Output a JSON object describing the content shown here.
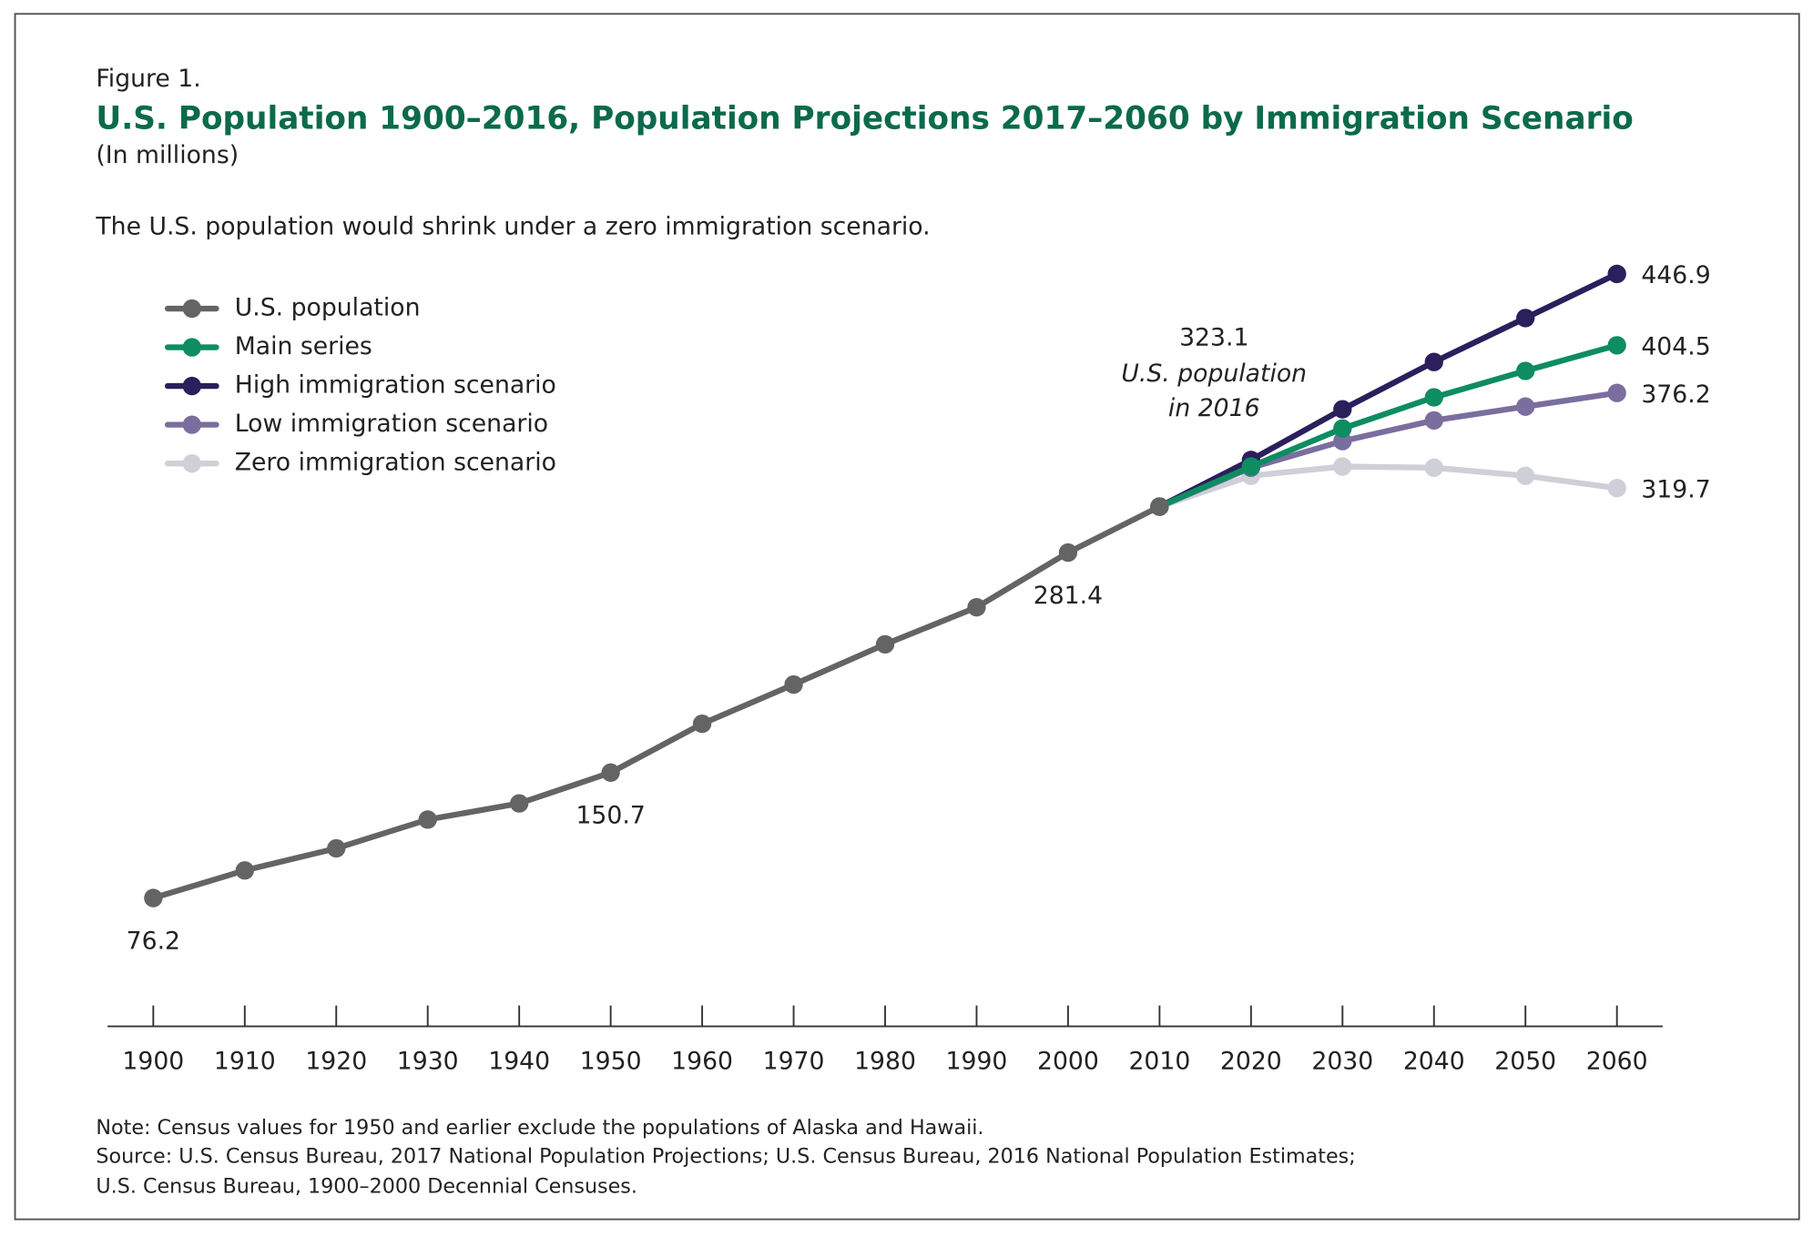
{
  "chart_data": {
    "type": "line",
    "label": "Figure 1.",
    "title": "U.S. Population 1900–2016, Population Projections 2017–2060 by Immigration Scenario",
    "subtitle": "(In millions)",
    "caption": "The U.S. population would shrink under a zero immigration scenario.",
    "annotations": [
      "323.1",
      "U.S. population",
      "in 2016"
    ],
    "series": [
      {
        "name": "U.S. population",
        "color": "#646464",
        "x": [
          1900,
          1910,
          1920,
          1930,
          1940,
          1950,
          1960,
          1970,
          1980,
          1990,
          2000,
          2010
        ],
        "values": [
          76.2,
          92.6,
          105.7,
          122.8,
          132.4,
          150.7,
          179.7,
          203.0,
          226.9,
          248.9,
          281.4,
          308.7
        ],
        "value_labels": [
          "76.2",
          null,
          null,
          null,
          null,
          "150.7",
          null,
          null,
          null,
          null,
          "281.4",
          null
        ]
      },
      {
        "name": "Main series",
        "color": "#0e8c62",
        "x": [
          2010,
          2020,
          2030,
          2040,
          2050,
          2060
        ],
        "values": [
          308.7,
          332.5,
          355.1,
          373.6,
          389.3,
          404.5
        ],
        "value_labels": [
          null,
          null,
          null,
          null,
          null,
          "404.5"
        ]
      },
      {
        "name": "High immigration scenario",
        "color": "#2b1f5c",
        "x": [
          2010,
          2020,
          2030,
          2040,
          2050,
          2060
        ],
        "values": [
          308.7,
          336.4,
          366.5,
          394.6,
          420.7,
          446.9
        ],
        "value_labels": [
          null,
          null,
          null,
          null,
          null,
          "446.9"
        ]
      },
      {
        "name": "Low immigration scenario",
        "color": "#7a6e9e",
        "x": [
          2010,
          2020,
          2030,
          2040,
          2050,
          2060
        ],
        "values": [
          308.7,
          331.8,
          347.6,
          359.9,
          368.1,
          376.2
        ],
        "value_labels": [
          null,
          null,
          null,
          null,
          null,
          "376.2"
        ]
      },
      {
        "name": "Zero immigration scenario",
        "color": "#cfcfd8",
        "x": [
          2010,
          2020,
          2030,
          2040,
          2050,
          2060
        ],
        "values": [
          308.7,
          327.0,
          332.5,
          331.8,
          327.0,
          319.7
        ],
        "value_labels": [
          null,
          null,
          null,
          null,
          null,
          "319.7"
        ]
      }
    ],
    "xlim": [
      1895,
      2065
    ],
    "xticks": [
      1900,
      1910,
      1920,
      1930,
      1940,
      1950,
      1960,
      1970,
      1980,
      1990,
      2000,
      2010,
      2020,
      2030,
      2040,
      2050,
      2060
    ],
    "ylim": [
      0,
      480
    ],
    "legend": "upper left",
    "notes": [
      "Note: Census values for 1950 and earlier exclude the populations of Alaska and Hawaii.",
      "Source: U.S. Census Bureau, 2017 National Population Projections; U.S. Census Bureau, 2016 National Population Estimates;",
      "U.S. Census Bureau, 1900–2000 Decennial Censuses."
    ]
  }
}
